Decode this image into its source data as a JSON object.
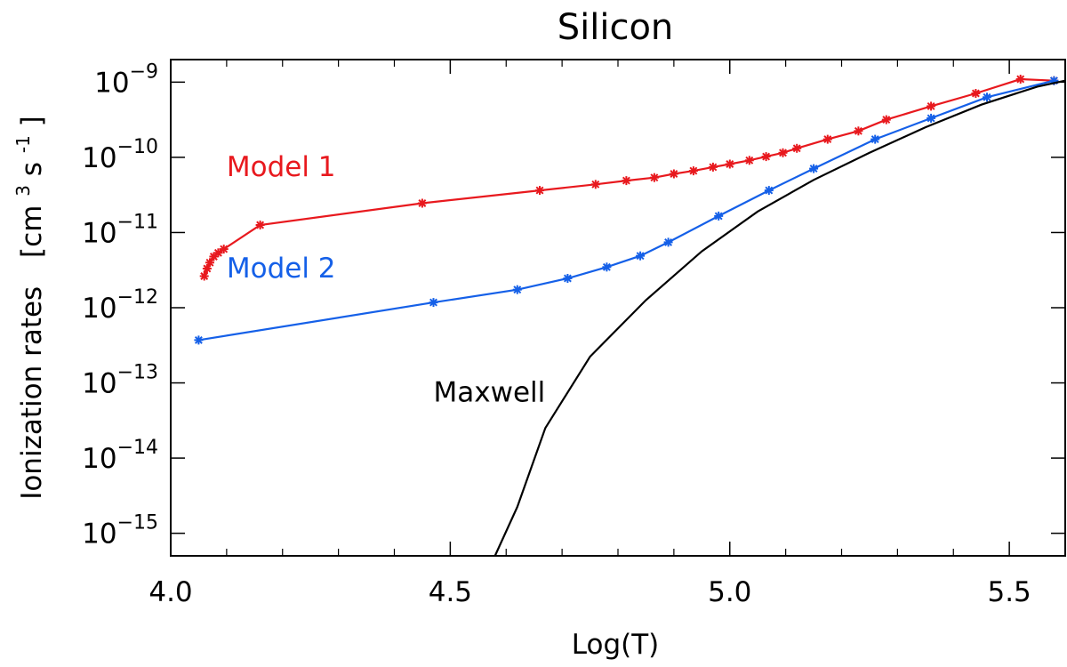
{
  "chart_data": {
    "type": "line",
    "title": "Silicon",
    "xlabel": "Log(T)",
    "ylabel_text": "Ionization rates",
    "ylabel_units": "[cm",
    "ylabel_units_exp1": "3",
    "ylabel_units_mid": " s",
    "ylabel_units_exp2": "-1",
    "ylabel_units_end": "]",
    "yscale": "log",
    "xlim": [
      4.0,
      5.6
    ],
    "ylim_log10": [
      -15.3,
      -8.7
    ],
    "xticks": [
      {
        "value": 4.0,
        "label": "4.0"
      },
      {
        "value": 4.5,
        "label": "4.5"
      },
      {
        "value": 5.0,
        "label": "5.0"
      },
      {
        "value": 5.5,
        "label": "5.5"
      }
    ],
    "yticks": [
      {
        "exp": -9,
        "base": "10",
        "sup": "−9"
      },
      {
        "exp": -10,
        "base": "10",
        "sup": "−10"
      },
      {
        "exp": -11,
        "base": "10",
        "sup": "−11"
      },
      {
        "exp": -12,
        "base": "10",
        "sup": "−12"
      },
      {
        "exp": -13,
        "base": "10",
        "sup": "−13"
      },
      {
        "exp": -14,
        "base": "10",
        "sup": "−14"
      },
      {
        "exp": -15,
        "base": "10",
        "sup": "−15"
      }
    ],
    "series": [
      {
        "name": "Model 1",
        "color": "#e8191e",
        "markers": true,
        "label_at": [
          4.1,
          -10.25
        ],
        "x": [
          4.06,
          4.065,
          4.07,
          4.077,
          4.085,
          4.095,
          4.16,
          4.45,
          4.66,
          4.76,
          4.815,
          4.865,
          4.9,
          4.935,
          4.97,
          5.0,
          5.035,
          5.065,
          5.095,
          5.12,
          5.175,
          5.23,
          5.28,
          5.36,
          5.44,
          5.52,
          5.58
        ],
        "y": [
          -11.58,
          -11.48,
          -11.4,
          -11.32,
          -11.27,
          -11.22,
          -10.9,
          -10.61,
          -10.44,
          -10.36,
          -10.31,
          -10.27,
          -10.22,
          -10.18,
          -10.13,
          -10.09,
          -10.04,
          -9.99,
          -9.94,
          -9.88,
          -9.76,
          -9.65,
          -9.5,
          -9.32,
          -9.15,
          -8.96,
          -8.98
        ]
      },
      {
        "name": "Model 2",
        "color": "#1560e8",
        "markers": true,
        "label_at": [
          4.1,
          -11.6
        ],
        "x": [
          4.05,
          4.47,
          4.62,
          4.71,
          4.78,
          4.84,
          4.89,
          4.98,
          5.07,
          5.15,
          5.26,
          5.36,
          5.46,
          5.58
        ],
        "y": [
          -12.43,
          -11.93,
          -11.76,
          -11.61,
          -11.46,
          -11.31,
          -11.13,
          -10.78,
          -10.44,
          -10.15,
          -9.76,
          -9.48,
          -9.2,
          -8.98
        ]
      },
      {
        "name": "Maxwell",
        "color": "#000000",
        "markers": false,
        "label_at": [
          4.47,
          -13.25
        ],
        "x": [
          4.58,
          4.62,
          4.67,
          4.75,
          4.85,
          4.95,
          5.05,
          5.15,
          5.25,
          5.35,
          5.45,
          5.55,
          5.6
        ],
        "y": [
          -15.3,
          -14.65,
          -13.6,
          -12.65,
          -11.9,
          -11.25,
          -10.72,
          -10.3,
          -9.94,
          -9.6,
          -9.3,
          -9.06,
          -8.98
        ]
      }
    ]
  }
}
